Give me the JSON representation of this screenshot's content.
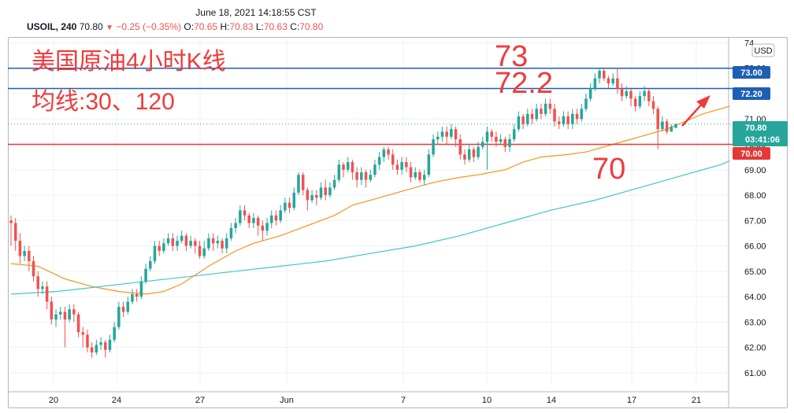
{
  "timestamp": "June 18, 2021 14:18:55 CST",
  "legend": {
    "symbol": "USOIL, 240",
    "last": "70.80",
    "arrow": "▼",
    "change": "−0.25 (−0.35%)",
    "o_label": "O:",
    "o": "70.65",
    "h_label": "H:",
    "h": "70.83",
    "l_label": "L:",
    "l": "70.63",
    "c_label": "C:",
    "c": "70.80"
  },
  "annotations": {
    "title": "美国原油4小时K线",
    "ma_note": "均线:30、120",
    "level_73": "73",
    "level_722": "72.2",
    "level_70": "70"
  },
  "price_tags": {
    "currency": "USD",
    "tag_73": "73.00",
    "tag_722": "72.20",
    "tag_current": "70.80",
    "tag_countdown": "03:41:06",
    "tag_70": "70.00",
    "top_partial": "74"
  },
  "colors": {
    "up": "#26a69a",
    "down": "#ef5350",
    "ma30": "#f7931a",
    "ma120": "#3ec7c7",
    "blue_line": "#1e5fb4",
    "red_line": "#e53935",
    "annotation": "#ef3b3b"
  },
  "chart_data": {
    "type": "candlestick",
    "instrument": "USOIL",
    "timeframe": "240",
    "ylim": [
      60.5,
      74.2
    ],
    "y_ticks": [
      "74.00",
      "73.00",
      "72.00",
      "71.00",
      "70.00",
      "69.00",
      "68.00",
      "67.00",
      "66.00",
      "65.00",
      "64.00",
      "63.00",
      "62.00",
      "61.00"
    ],
    "x_ticks": [
      "20",
      "24",
      "27",
      "Jun",
      "7",
      "10",
      "14",
      "17",
      "21"
    ],
    "horizontal_levels": [
      {
        "price": 73.0,
        "color": "blue"
      },
      {
        "price": 72.2,
        "color": "blue"
      },
      {
        "price": 70.0,
        "color": "red"
      },
      {
        "price": 70.8,
        "color": "teal-dotted"
      }
    ],
    "moving_averages": [
      {
        "name": "MA 30",
        "points": [
          [
            0,
            65.3
          ],
          [
            6,
            65.2
          ],
          [
            12,
            64.7
          ],
          [
            18,
            64.4
          ],
          [
            24,
            64.2
          ],
          [
            30,
            64.1
          ],
          [
            34,
            64.2
          ],
          [
            38,
            64.5
          ],
          [
            44,
            65.2
          ],
          [
            50,
            65.8
          ],
          [
            54,
            66.1
          ],
          [
            60,
            66.4
          ],
          [
            66,
            66.8
          ],
          [
            72,
            67.2
          ],
          [
            76,
            67.6
          ],
          [
            82,
            67.9
          ],
          [
            88,
            68.2
          ],
          [
            94,
            68.5
          ],
          [
            100,
            68.7
          ],
          [
            104,
            68.8
          ],
          [
            110,
            69.0
          ],
          [
            114,
            69.3
          ],
          [
            118,
            69.5
          ],
          [
            124,
            69.6
          ],
          [
            128,
            69.7
          ],
          [
            134,
            70.0
          ],
          [
            140,
            70.3
          ],
          [
            146,
            70.6
          ],
          [
            150,
            70.9
          ],
          [
            154,
            71.2
          ],
          [
            160,
            71.5
          ]
        ]
      },
      {
        "name": "MA 120",
        "points": [
          [
            0,
            64.1
          ],
          [
            10,
            64.2
          ],
          [
            20,
            64.4
          ],
          [
            30,
            64.6
          ],
          [
            40,
            64.8
          ],
          [
            50,
            65.0
          ],
          [
            60,
            65.2
          ],
          [
            70,
            65.4
          ],
          [
            80,
            65.7
          ],
          [
            90,
            66.0
          ],
          [
            100,
            66.4
          ],
          [
            110,
            66.9
          ],
          [
            120,
            67.4
          ],
          [
            130,
            67.8
          ],
          [
            140,
            68.3
          ],
          [
            150,
            68.8
          ],
          [
            158,
            69.2
          ],
          [
            160,
            69.35
          ]
        ]
      }
    ],
    "candles": [
      [
        67.0,
        66.9,
        67.2,
        66.0
      ],
      [
        66.9,
        66.2,
        67.1,
        65.8
      ],
      [
        66.2,
        65.6,
        66.5,
        65.3
      ],
      [
        65.6,
        65.8,
        66.0,
        65.4
      ],
      [
        65.8,
        65.4,
        66.0,
        65.0
      ],
      [
        65.4,
        64.8,
        65.6,
        64.6
      ],
      [
        64.8,
        64.3,
        65.0,
        64.0
      ],
      [
        64.3,
        64.4,
        64.6,
        64.1
      ],
      [
        64.4,
        63.8,
        64.6,
        63.5
      ],
      [
        63.8,
        63.1,
        64.0,
        62.9
      ],
      [
        63.1,
        63.3,
        63.5,
        62.8
      ],
      [
        63.3,
        63.4,
        63.6,
        63.1
      ],
      [
        63.4,
        63.1,
        63.6,
        62.0
      ],
      [
        63.1,
        63.5,
        63.7,
        63.0
      ],
      [
        63.5,
        63.3,
        63.7,
        63.0
      ],
      [
        63.3,
        62.6,
        63.4,
        62.4
      ],
      [
        62.6,
        62.5,
        62.8,
        62.0
      ],
      [
        62.5,
        62.0,
        62.7,
        61.8
      ],
      [
        62.0,
        61.8,
        62.2,
        61.6
      ],
      [
        61.8,
        62.1,
        62.3,
        61.7
      ],
      [
        62.1,
        62.2,
        62.4,
        61.9
      ],
      [
        62.2,
        61.9,
        62.3,
        61.6
      ],
      [
        61.9,
        62.3,
        62.5,
        61.8
      ],
      [
        62.3,
        62.8,
        63.0,
        62.2
      ],
      [
        62.8,
        63.6,
        63.8,
        62.7
      ],
      [
        63.6,
        63.4,
        63.8,
        63.2
      ],
      [
        63.4,
        63.8,
        64.0,
        63.3
      ],
      [
        63.8,
        64.1,
        64.3,
        63.7
      ],
      [
        64.1,
        64.0,
        64.3,
        63.8
      ],
      [
        64.0,
        64.6,
        64.8,
        63.9
      ],
      [
        64.6,
        65.1,
        65.3,
        64.5
      ],
      [
        65.1,
        65.4,
        65.6,
        65.0
      ],
      [
        65.4,
        66.0,
        66.2,
        65.3
      ],
      [
        66.0,
        65.8,
        66.2,
        65.6
      ],
      [
        65.8,
        66.1,
        66.3,
        65.7
      ],
      [
        66.1,
        66.3,
        66.5,
        66.0
      ],
      [
        66.3,
        66.0,
        66.5,
        65.8
      ],
      [
        66.0,
        66.2,
        66.4,
        65.8
      ],
      [
        66.2,
        66.4,
        66.6,
        66.1
      ],
      [
        66.4,
        66.0,
        66.5,
        65.8
      ],
      [
        66.0,
        66.2,
        66.4,
        65.9
      ],
      [
        66.2,
        66.0,
        66.3,
        65.7
      ],
      [
        66.0,
        65.6,
        66.2,
        65.5
      ],
      [
        65.6,
        65.9,
        66.2,
        65.5
      ],
      [
        65.9,
        66.3,
        66.5,
        65.8
      ],
      [
        66.3,
        66.1,
        66.5,
        65.8
      ],
      [
        66.1,
        66.2,
        66.4,
        65.9
      ],
      [
        66.2,
        65.9,
        66.3,
        65.7
      ],
      [
        65.9,
        66.3,
        66.5,
        65.7
      ],
      [
        66.3,
        66.7,
        66.9,
        66.2
      ],
      [
        66.7,
        66.9,
        67.1,
        66.5
      ],
      [
        66.9,
        67.4,
        67.6,
        66.8
      ],
      [
        67.4,
        67.2,
        67.6,
        67.0
      ],
      [
        67.2,
        66.9,
        67.3,
        66.7
      ],
      [
        66.9,
        67.1,
        67.3,
        66.7
      ],
      [
        67.1,
        66.8,
        67.2,
        66.4
      ],
      [
        66.8,
        66.6,
        67.0,
        66.2
      ],
      [
        66.6,
        66.9,
        67.1,
        66.4
      ],
      [
        66.9,
        67.2,
        67.4,
        66.7
      ],
      [
        67.2,
        67.0,
        67.4,
        66.8
      ],
      [
        67.0,
        67.4,
        67.6,
        66.9
      ],
      [
        67.4,
        67.7,
        67.9,
        67.3
      ],
      [
        67.7,
        67.5,
        67.9,
        67.3
      ],
      [
        67.5,
        68.1,
        68.3,
        67.4
      ],
      [
        68.1,
        68.8,
        68.9,
        68.0
      ],
      [
        68.8,
        68.2,
        68.9,
        68.0
      ],
      [
        68.2,
        67.8,
        68.3,
        67.4
      ],
      [
        67.8,
        68.0,
        68.2,
        67.7
      ],
      [
        68.0,
        67.9,
        68.2,
        67.6
      ],
      [
        67.9,
        68.3,
        68.5,
        67.8
      ],
      [
        68.3,
        68.0,
        68.6,
        67.8
      ],
      [
        68.0,
        68.3,
        68.5,
        67.9
      ],
      [
        68.3,
        68.6,
        68.8,
        68.2
      ],
      [
        68.6,
        69.2,
        69.4,
        68.5
      ],
      [
        69.2,
        69.0,
        69.3,
        68.7
      ],
      [
        69.0,
        69.3,
        69.5,
        68.9
      ],
      [
        69.3,
        68.9,
        69.4,
        68.6
      ],
      [
        68.9,
        68.6,
        69.1,
        68.3
      ],
      [
        68.6,
        68.9,
        69.1,
        68.4
      ],
      [
        68.9,
        68.6,
        69.0,
        68.3
      ],
      [
        68.6,
        68.8,
        69.0,
        68.5
      ],
      [
        68.8,
        69.2,
        69.4,
        68.7
      ],
      [
        69.2,
        69.5,
        69.7,
        69.0
      ],
      [
        69.5,
        69.8,
        69.9,
        69.3
      ],
      [
        69.8,
        69.6,
        69.9,
        69.4
      ],
      [
        69.6,
        69.2,
        69.8,
        69.0
      ],
      [
        69.2,
        69.0,
        69.4,
        68.8
      ],
      [
        69.0,
        69.3,
        69.5,
        68.8
      ],
      [
        69.3,
        69.1,
        69.5,
        68.9
      ],
      [
        69.1,
        68.7,
        69.3,
        68.5
      ],
      [
        68.7,
        68.9,
        69.1,
        68.6
      ],
      [
        68.9,
        68.6,
        69.0,
        68.5
      ],
      [
        68.6,
        68.8,
        69.0,
        68.4
      ],
      [
        68.8,
        69.6,
        69.8,
        68.7
      ],
      [
        69.6,
        70.2,
        70.4,
        69.5
      ],
      [
        70.2,
        70.3,
        70.5,
        70.0
      ],
      [
        70.3,
        70.5,
        70.7,
        70.1
      ],
      [
        70.5,
        70.3,
        70.7,
        70.0
      ],
      [
        70.3,
        70.6,
        70.8,
        70.2
      ],
      [
        70.6,
        70.2,
        70.7,
        69.9
      ],
      [
        70.2,
        69.6,
        70.4,
        69.4
      ],
      [
        69.6,
        69.4,
        69.8,
        69.2
      ],
      [
        69.4,
        69.8,
        70.0,
        69.3
      ],
      [
        69.8,
        69.5,
        69.9,
        69.3
      ],
      [
        69.5,
        69.9,
        70.1,
        69.4
      ],
      [
        69.9,
        70.1,
        70.3,
        69.8
      ],
      [
        70.1,
        70.5,
        70.7,
        69.0
      ],
      [
        70.5,
        70.3,
        70.6,
        70.1
      ],
      [
        70.3,
        70.1,
        70.5,
        69.9
      ],
      [
        70.1,
        70.2,
        70.4,
        70.0
      ],
      [
        70.2,
        69.9,
        70.3,
        69.7
      ],
      [
        69.9,
        70.2,
        70.4,
        69.7
      ],
      [
        70.2,
        70.6,
        70.8,
        70.1
      ],
      [
        70.6,
        71.1,
        71.3,
        70.5
      ],
      [
        71.1,
        70.8,
        71.2,
        70.6
      ],
      [
        70.8,
        71.2,
        71.4,
        70.7
      ],
      [
        71.2,
        71.0,
        71.4,
        70.8
      ],
      [
        71.0,
        71.4,
        71.6,
        70.9
      ],
      [
        71.4,
        71.2,
        71.6,
        71.0
      ],
      [
        71.2,
        71.6,
        71.8,
        71.1
      ],
      [
        71.6,
        71.4,
        71.8,
        71.2
      ],
      [
        71.4,
        70.9,
        71.6,
        70.7
      ],
      [
        70.9,
        70.8,
        71.1,
        70.6
      ],
      [
        70.8,
        71.1,
        71.3,
        70.7
      ],
      [
        71.1,
        70.8,
        71.3,
        70.6
      ],
      [
        70.8,
        71.2,
        71.4,
        70.6
      ],
      [
        71.2,
        71.0,
        71.4,
        70.8
      ],
      [
        71.0,
        71.4,
        71.6,
        70.9
      ],
      [
        71.4,
        71.8,
        72.0,
        71.3
      ],
      [
        71.8,
        72.2,
        72.4,
        71.7
      ],
      [
        72.2,
        72.6,
        72.8,
        72.1
      ],
      [
        72.6,
        72.9,
        73.0,
        72.4
      ],
      [
        72.9,
        72.6,
        73.0,
        72.5
      ],
      [
        72.6,
        72.4,
        72.7,
        72.2
      ],
      [
        72.4,
        72.6,
        72.8,
        72.3
      ],
      [
        72.6,
        72.2,
        73.0,
        72.0
      ],
      [
        72.2,
        71.9,
        72.4,
        71.7
      ],
      [
        71.9,
        72.1,
        72.3,
        71.8
      ],
      [
        72.1,
        71.8,
        72.2,
        71.5
      ],
      [
        71.8,
        71.5,
        71.9,
        71.3
      ],
      [
        71.5,
        71.9,
        72.1,
        71.4
      ],
      [
        71.9,
        72.1,
        72.3,
        71.7
      ],
      [
        72.1,
        71.7,
        72.2,
        71.5
      ],
      [
        71.7,
        71.4,
        71.9,
        71.2
      ],
      [
        71.4,
        70.6,
        71.5,
        69.8
      ],
      [
        70.6,
        70.9,
        71.1,
        70.5
      ],
      [
        70.9,
        70.5,
        71.0,
        70.4
      ],
      [
        70.5,
        70.7,
        70.8,
        70.5
      ],
      [
        70.65,
        70.8,
        70.83,
        70.63
      ]
    ]
  }
}
